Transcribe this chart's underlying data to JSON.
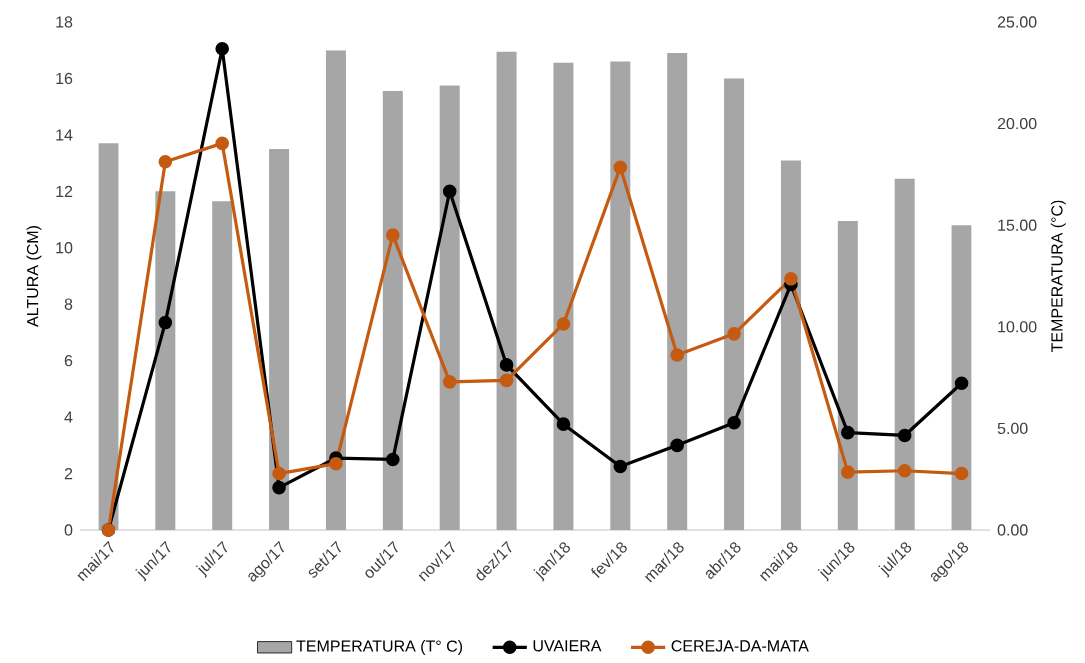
{
  "chart_data": {
    "type": "bar",
    "ylabel": "ALTURA (CM)",
    "y2label": "TEMPERATURA (°C)",
    "categories": [
      "mai/17",
      "jun/17",
      "jul/17",
      "ago/17",
      "set/17",
      "out/17",
      "nov/17",
      "dez/17",
      "jan/18",
      "fev/18",
      "mar/18",
      "abr/18",
      "mai/18",
      "jun/18",
      "jul/18",
      "ago/18"
    ],
    "series": [
      {
        "name": "TEMPERATURA  (T° C)",
        "axis": "y2",
        "color": "#a6a6a6",
        "values": [
          19.03,
          16.67,
          16.18,
          18.75,
          23.61,
          21.6,
          21.88,
          23.54,
          22.99,
          23.06,
          23.47,
          22.22,
          18.19,
          15.21,
          17.29,
          15.0
        ]
      },
      {
        "name": "UVAIERA",
        "type": "line",
        "color": "#000000",
        "values": [
          0,
          7.35,
          17.05,
          1.5,
          2.55,
          2.5,
          12.0,
          5.85,
          3.75,
          2.25,
          3.0,
          3.8,
          8.7,
          3.45,
          3.35,
          5.2
        ]
      },
      {
        "name": "CEREJA-DA-MATA",
        "type": "line",
        "color": "#c55a11",
        "values": [
          0,
          13.05,
          13.7,
          2.0,
          2.35,
          10.45,
          5.25,
          5.3,
          7.3,
          12.85,
          6.2,
          6.95,
          8.9,
          2.05,
          2.1,
          2.0
        ]
      }
    ],
    "ylim": [
      0,
      18
    ],
    "yticks": [
      0,
      2,
      4,
      6,
      8,
      10,
      12,
      14,
      16,
      18
    ],
    "y2lim": [
      0,
      25
    ],
    "y2ticks": [
      {
        "value": 0,
        "label": "0.00"
      },
      {
        "value": 5,
        "label": "5.00"
      },
      {
        "value": 10,
        "label": "10.00"
      },
      {
        "value": 15,
        "label": "15.00"
      },
      {
        "value": 20,
        "label": "20.00"
      },
      {
        "value": 25,
        "label": "25.00"
      }
    ],
    "marker": "circle",
    "legend": "bottom"
  }
}
